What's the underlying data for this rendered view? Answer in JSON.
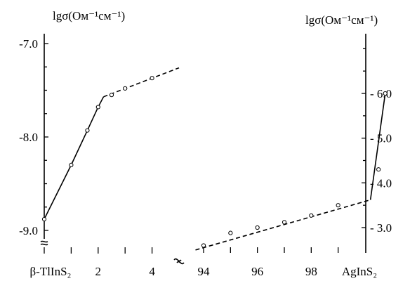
{
  "chart_data": {
    "type": "line",
    "left_panel": {
      "y_axis_label": "lgσ(Ом⁻¹см⁻¹)",
      "y_range": [
        -9.2,
        -6.95
      ],
      "y_ticks": [
        -7.0,
        -8.0,
        -9.0
      ],
      "y_tick_labels": [
        "-7.0",
        "-8.0",
        "-9.0"
      ],
      "x_range": [
        0,
        5.2
      ],
      "x_ticks": [
        0,
        1,
        2,
        3,
        4
      ],
      "x_tick_labels": [
        {
          "x": 0,
          "text": "β-TlInS₂"
        },
        {
          "x": 2,
          "text": "2"
        },
        {
          "x": 4,
          "text": "4"
        }
      ],
      "solid_line": [
        [
          0,
          -8.88
        ],
        [
          1,
          -8.3
        ],
        [
          1.6,
          -7.93
        ],
        [
          2,
          -7.68
        ],
        [
          2.2,
          -7.57
        ]
      ],
      "dashed_line": [
        [
          2.2,
          -7.57
        ],
        [
          5.0,
          -7.26
        ]
      ],
      "points": [
        [
          0,
          -8.88
        ],
        [
          1,
          -8.3
        ],
        [
          1.6,
          -7.93
        ],
        [
          2,
          -7.68
        ],
        [
          2.5,
          -7.55
        ],
        [
          3,
          -7.48
        ],
        [
          4,
          -7.37
        ]
      ]
    },
    "right_panel": {
      "y_axis_label": "lgσ(Ом⁻¹см⁻¹)",
      "y_range": [
        2.5,
        7.5
      ],
      "y_ticks": [
        3.0,
        4.0,
        5.0,
        6.0
      ],
      "y_tick_labels": [
        "- 3.0",
        "- 4.0",
        "- 5.0",
        "- 6.0"
      ],
      "x_range": [
        92,
        100.75
      ],
      "x_ticks": [
        94,
        96,
        98,
        100
      ],
      "x_tick_labels": [
        {
          "x": 94,
          "text": "94"
        },
        {
          "x": 96,
          "text": "96"
        },
        {
          "x": 98,
          "text": "98"
        },
        {
          "x": 100,
          "text": "AgInS₂"
        }
      ],
      "dashed_line": [
        [
          93.7,
          2.5
        ],
        [
          100.2,
          3.62
        ]
      ],
      "solid_line": [
        [
          100.2,
          3.62
        ],
        [
          100.75,
          6.0
        ]
      ],
      "points": [
        [
          94,
          2.6
        ],
        [
          95,
          2.88
        ],
        [
          96,
          3.0
        ],
        [
          97,
          3.12
        ],
        [
          98,
          3.27
        ],
        [
          99,
          3.5
        ],
        [
          100.5,
          4.3
        ],
        [
          100.75,
          6.0
        ]
      ]
    },
    "grid": false,
    "legend": "none"
  }
}
